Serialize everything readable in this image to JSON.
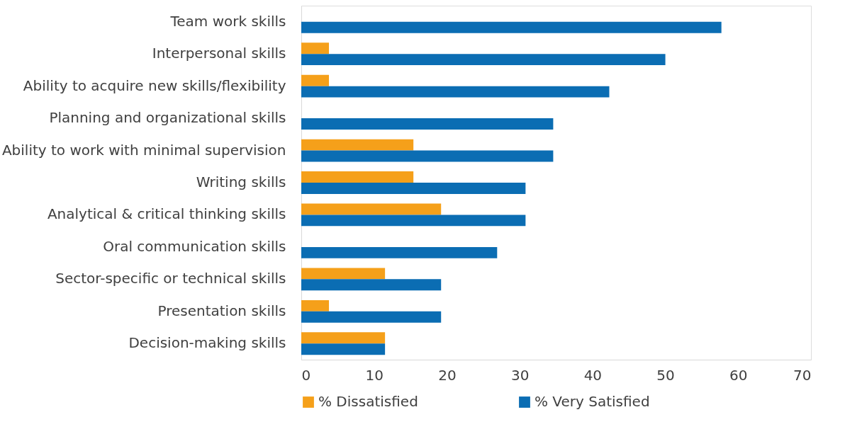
{
  "chart_data": {
    "type": "bar",
    "orientation": "horizontal",
    "categories": [
      "Team work skills",
      "Interpersonal skills",
      "Ability to acquire new skills/flexibility",
      "Planning and organizational skills",
      "Ability to work with minimal supervision",
      "Writing skills",
      "Analytical & critical thinking skills",
      "Oral communication skills ",
      "Sector-specific or technical skills",
      "Presentation skills",
      "Decision-making skills"
    ],
    "series": [
      {
        "name": "% Dissatisfied",
        "color": "#f5a01a",
        "values": [
          null,
          3.8,
          3.8,
          null,
          15.4,
          15.4,
          19.2,
          null,
          11.5,
          3.8,
          11.5
        ]
      },
      {
        "name": "% Very Satisfied",
        "color": "#0b6db3",
        "values": [
          57.7,
          50.0,
          42.3,
          34.6,
          34.6,
          30.8,
          30.8,
          26.9,
          19.2,
          19.2,
          11.5
        ]
      }
    ],
    "xlim": [
      0,
      70
    ],
    "xticks": [
      0,
      10,
      20,
      30,
      40,
      50,
      60,
      70
    ],
    "grid": false,
    "legend": "bottom"
  }
}
